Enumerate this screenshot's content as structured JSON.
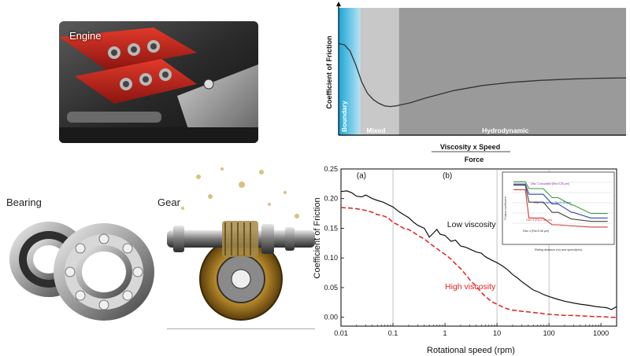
{
  "labels": {
    "engine": "Engine",
    "bearing": "Bearing",
    "gear": "Gear"
  },
  "colors": {
    "low_viscosity": "#111111",
    "high_viscosity": "#e02020",
    "boundary_region": "#1aa6d6",
    "mixed_region": "#c8c8c8",
    "hydrodynamic_region": "#9a9a9a"
  },
  "chart_data": [
    {
      "type": "line",
      "title": "",
      "ylabel": "Coefficient of Friction",
      "xlabel_top": "Viscosity x Speed",
      "xlabel_bottom": "Force",
      "regions": [
        {
          "label": "Boundary"
        },
        {
          "label": "Mixed"
        },
        {
          "label": "Hydrodynamic"
        }
      ],
      "curve": {
        "x": [
          0.0,
          0.02,
          0.04,
          0.06,
          0.08,
          0.1,
          0.12,
          0.14,
          0.16,
          0.18,
          0.2,
          0.25,
          0.3,
          0.4,
          0.5,
          0.6,
          0.7,
          0.8,
          0.9,
          1.0
        ],
        "y": [
          0.72,
          0.71,
          0.66,
          0.55,
          0.42,
          0.33,
          0.28,
          0.25,
          0.23,
          0.225,
          0.23,
          0.255,
          0.29,
          0.35,
          0.39,
          0.415,
          0.43,
          0.44,
          0.447,
          0.45
        ]
      },
      "xlim": [
        0,
        1
      ],
      "ylim": [
        0,
        1
      ]
    },
    {
      "type": "line",
      "title": "",
      "xlabel": "Rotational speed (rpm)",
      "ylabel": "Coefficient of Friction",
      "xscale": "log",
      "xlim": [
        0.01,
        2000
      ],
      "ylim": [
        -0.015,
        0.25
      ],
      "xticks": [
        0.01,
        0.1,
        1,
        10,
        100,
        1000
      ],
      "xtick_labels": [
        "0.01",
        "0.1",
        "1",
        "10",
        "100",
        "1000"
      ],
      "yticks": [
        0.0,
        0.05,
        0.1,
        0.15,
        0.2,
        0.25
      ],
      "ytick_labels": [
        "0.00",
        "0.05",
        "0.10",
        "0.15",
        "0.20",
        "0.25"
      ],
      "vlines": [
        0.1,
        10,
        100
      ],
      "panel_labels": [
        {
          "text": "(a)",
          "x": 0.02,
          "y": 0.235
        },
        {
          "text": "(b)",
          "x": 0.9,
          "y": 0.235
        }
      ],
      "annotations": [
        {
          "text": "Low viscosity",
          "x": 1.1,
          "y": 0.152,
          "series": 0
        },
        {
          "text": "High viscosity",
          "x": 1.0,
          "y": 0.047,
          "series": 1
        }
      ],
      "series": [
        {
          "name": "Low viscosity",
          "style": "solid",
          "x": [
            0.01,
            0.013,
            0.016,
            0.02,
            0.025,
            0.03,
            0.04,
            0.05,
            0.065,
            0.08,
            0.1,
            0.13,
            0.16,
            0.2,
            0.25,
            0.3,
            0.4,
            0.5,
            0.6,
            0.7,
            0.8,
            1,
            1.3,
            1.6,
            2,
            2.5,
            3,
            4,
            5,
            6,
            8,
            10,
            13,
            16,
            20,
            25,
            30,
            40,
            50,
            65,
            80,
            100,
            150,
            200,
            300,
            400,
            600,
            800,
            1000,
            1300,
            1600,
            2000
          ],
          "y": [
            0.212,
            0.213,
            0.21,
            0.204,
            0.203,
            0.206,
            0.2,
            0.197,
            0.194,
            0.19,
            0.186,
            0.178,
            0.173,
            0.168,
            0.16,
            0.155,
            0.15,
            0.135,
            0.142,
            0.148,
            0.14,
            0.138,
            0.128,
            0.13,
            0.12,
            0.118,
            0.115,
            0.11,
            0.108,
            0.102,
            0.096,
            0.092,
            0.086,
            0.08,
            0.072,
            0.066,
            0.06,
            0.052,
            0.046,
            0.042,
            0.038,
            0.035,
            0.03,
            0.027,
            0.024,
            0.022,
            0.02,
            0.018,
            0.017,
            0.016,
            0.013,
            0.018
          ]
        },
        {
          "name": "High viscosity",
          "style": "dashed",
          "x": [
            0.01,
            0.015,
            0.02,
            0.03,
            0.04,
            0.05,
            0.06,
            0.08,
            0.1,
            0.13,
            0.16,
            0.2,
            0.25,
            0.3,
            0.4,
            0.5,
            0.6,
            0.8,
            1,
            1.3,
            1.6,
            2,
            2.5,
            3,
            4,
            5,
            6,
            8,
            10,
            13,
            16,
            20,
            25,
            30,
            40,
            50,
            65,
            80,
            100,
            150,
            200,
            300,
            500,
            800,
            1000,
            1500,
            2000
          ],
          "y": [
            0.185,
            0.184,
            0.183,
            0.18,
            0.177,
            0.173,
            0.172,
            0.168,
            0.16,
            0.155,
            0.15,
            0.148,
            0.143,
            0.138,
            0.132,
            0.125,
            0.12,
            0.112,
            0.106,
            0.098,
            0.09,
            0.082,
            0.072,
            0.063,
            0.052,
            0.042,
            0.035,
            0.026,
            0.022,
            0.017,
            0.014,
            0.012,
            0.011,
            0.01,
            0.009,
            0.008,
            0.007,
            0.006,
            0.005,
            0.004,
            0.003,
            0.003,
            0.002,
            0.001,
            0.001,
            0.0,
            0.0
          ]
        }
      ],
      "inset": {
        "ylabel": "Friction coefficient",
        "xlabel": "Sliding distance (m) and speed(m/s)",
        "legend": [
          "Disc 1 uncoated (Ra=0.26 μm)",
          "Disc 1 polished (Ra=0.05 μm)",
          "Disc 3 (Ra=0.52 μm)",
          "Disc 4 (Ra=0.46 μm)"
        ]
      }
    }
  ]
}
